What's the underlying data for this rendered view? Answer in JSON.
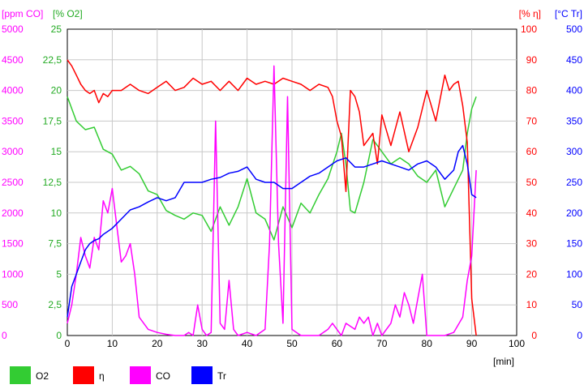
{
  "chart_data": {
    "type": "line",
    "xlabel": "[min]",
    "xlim": [
      0,
      100
    ],
    "x_ticks": [
      "0",
      "10",
      "20",
      "30",
      "40",
      "50",
      "60",
      "70",
      "80",
      "90",
      "100"
    ],
    "grid": true,
    "legend_position": "bottom",
    "axes": [
      {
        "id": "co",
        "label": "[ppm CO]",
        "side": "left",
        "color": "#ff00ff",
        "lim": [
          0,
          5000
        ],
        "ticks": [
          "0",
          "500",
          "1000",
          "1500",
          "2000",
          "2500",
          "3000",
          "3500",
          "4000",
          "4500",
          "5000"
        ]
      },
      {
        "id": "o2",
        "label": "[% O2]",
        "side": "left",
        "color": "#22aa22",
        "lim": [
          0,
          25
        ],
        "ticks": [
          "0",
          "2,5",
          "5",
          "7,5",
          "10",
          "12,5",
          "15",
          "17,5",
          "20",
          "22,5",
          "25"
        ]
      },
      {
        "id": "eta",
        "label": "[% η]",
        "side": "right",
        "color": "#ff0000",
        "lim": [
          0,
          100
        ],
        "ticks": [
          "0",
          "10",
          "20",
          "30",
          "40",
          "50",
          "60",
          "70",
          "80",
          "90",
          "100"
        ]
      },
      {
        "id": "tr",
        "label": "[°C Tr]",
        "side": "right",
        "color": "#0000ff",
        "lim": [
          0,
          500
        ],
        "ticks": [
          "0",
          "50",
          "100",
          "150",
          "200",
          "250",
          "300",
          "350",
          "400",
          "450",
          "500"
        ]
      }
    ],
    "series": [
      {
        "name": "O2",
        "axis": "o2",
        "color": "#33cc33",
        "x": [
          0,
          2,
          4,
          6,
          8,
          10,
          12,
          14,
          16,
          18,
          20,
          22,
          24,
          26,
          28,
          30,
          32,
          34,
          36,
          38,
          40,
          42,
          44,
          46,
          48,
          50,
          52,
          54,
          56,
          58,
          60,
          61,
          62,
          63,
          64,
          66,
          68,
          70,
          72,
          74,
          76,
          78,
          80,
          82,
          84,
          86,
          88,
          89,
          90,
          91
        ],
        "y": [
          19.5,
          17.5,
          16.8,
          17,
          15.2,
          14.8,
          13.5,
          13.8,
          13.2,
          11.8,
          11.5,
          10.2,
          9.8,
          9.5,
          10,
          9.8,
          8.5,
          10.5,
          9,
          10.5,
          12.8,
          10,
          9.5,
          7.8,
          10.5,
          8.8,
          10.8,
          10,
          11.5,
          12.8,
          15,
          16.5,
          14,
          10.2,
          10,
          12.5,
          16,
          15,
          14,
          14.5,
          14,
          13,
          12.5,
          13.5,
          10.5,
          12,
          13.5,
          16.5,
          18.5,
          19.5
        ]
      },
      {
        "name": "η",
        "axis": "eta",
        "color": "#ff0000",
        "x": [
          0,
          1,
          2,
          3,
          4,
          5,
          6,
          7,
          8,
          9,
          10,
          12,
          14,
          16,
          18,
          20,
          22,
          24,
          26,
          28,
          30,
          32,
          34,
          36,
          38,
          40,
          42,
          44,
          46,
          48,
          50,
          52,
          54,
          56,
          58,
          59,
          60,
          61,
          62,
          63,
          64,
          65,
          66,
          68,
          69,
          70,
          72,
          74,
          76,
          78,
          80,
          82,
          84,
          85,
          86,
          87,
          88,
          89,
          90,
          91
        ],
        "y": [
          90,
          88,
          85,
          82,
          80,
          79,
          80,
          76,
          79,
          78,
          80,
          80,
          82,
          80,
          79,
          81,
          83,
          80,
          81,
          84,
          82,
          83,
          80,
          83,
          80,
          84,
          82,
          83,
          82,
          84,
          83,
          82,
          80,
          82,
          81,
          78,
          70,
          65,
          47,
          80,
          78,
          73,
          62,
          66,
          56,
          72,
          62,
          73,
          60,
          68,
          80,
          70,
          85,
          80,
          82,
          83,
          75,
          63,
          12,
          0
        ]
      },
      {
        "name": "CO",
        "axis": "co",
        "color": "#ff00ff",
        "x": [
          0,
          1,
          2,
          3,
          4,
          5,
          6,
          7,
          8,
          9,
          10,
          11,
          12,
          13,
          14,
          15,
          16,
          17,
          18,
          20,
          22,
          24,
          26,
          27,
          28,
          29,
          30,
          31,
          32,
          33,
          34,
          35,
          36,
          37,
          38,
          40,
          42,
          44,
          45,
          46,
          47,
          48,
          49,
          50,
          51,
          52,
          54,
          56,
          58,
          59,
          60,
          61,
          62,
          64,
          65,
          66,
          67,
          68,
          69,
          70,
          72,
          73,
          74,
          75,
          76,
          77,
          78,
          79,
          80,
          82,
          84,
          86,
          88,
          89,
          90,
          91
        ],
        "y": [
          200,
          500,
          1000,
          1600,
          1300,
          1100,
          1600,
          1400,
          2200,
          2000,
          2400,
          1800,
          1200,
          1300,
          1500,
          1000,
          300,
          200,
          100,
          50,
          20,
          0,
          0,
          50,
          0,
          500,
          100,
          0,
          50,
          3500,
          200,
          100,
          900,
          100,
          0,
          50,
          0,
          100,
          1500,
          4400,
          1500,
          200,
          3900,
          100,
          50,
          0,
          0,
          0,
          100,
          200,
          100,
          0,
          200,
          100,
          300,
          200,
          300,
          0,
          200,
          0,
          200,
          500,
          300,
          700,
          500,
          200,
          600,
          1000,
          0,
          0,
          0,
          50,
          300,
          900,
          1300,
          2700
        ]
      },
      {
        "name": "Tr",
        "axis": "tr",
        "color": "#0000ff",
        "x": [
          0,
          1,
          2,
          3,
          4,
          5,
          6,
          7,
          8,
          9,
          10,
          12,
          14,
          16,
          18,
          20,
          22,
          24,
          26,
          28,
          30,
          32,
          34,
          36,
          38,
          40,
          42,
          44,
          46,
          48,
          50,
          52,
          54,
          56,
          58,
          60,
          62,
          64,
          66,
          68,
          70,
          72,
          74,
          76,
          78,
          80,
          82,
          84,
          86,
          87,
          88,
          89,
          90,
          91
        ],
        "y": [
          30,
          80,
          100,
          120,
          140,
          150,
          155,
          158,
          165,
          170,
          175,
          190,
          205,
          210,
          218,
          225,
          220,
          225,
          250,
          250,
          250,
          255,
          258,
          265,
          268,
          275,
          255,
          250,
          250,
          240,
          240,
          250,
          260,
          265,
          275,
          285,
          290,
          275,
          275,
          280,
          285,
          280,
          275,
          270,
          280,
          285,
          275,
          255,
          270,
          300,
          310,
          280,
          230,
          225
        ]
      }
    ]
  }
}
